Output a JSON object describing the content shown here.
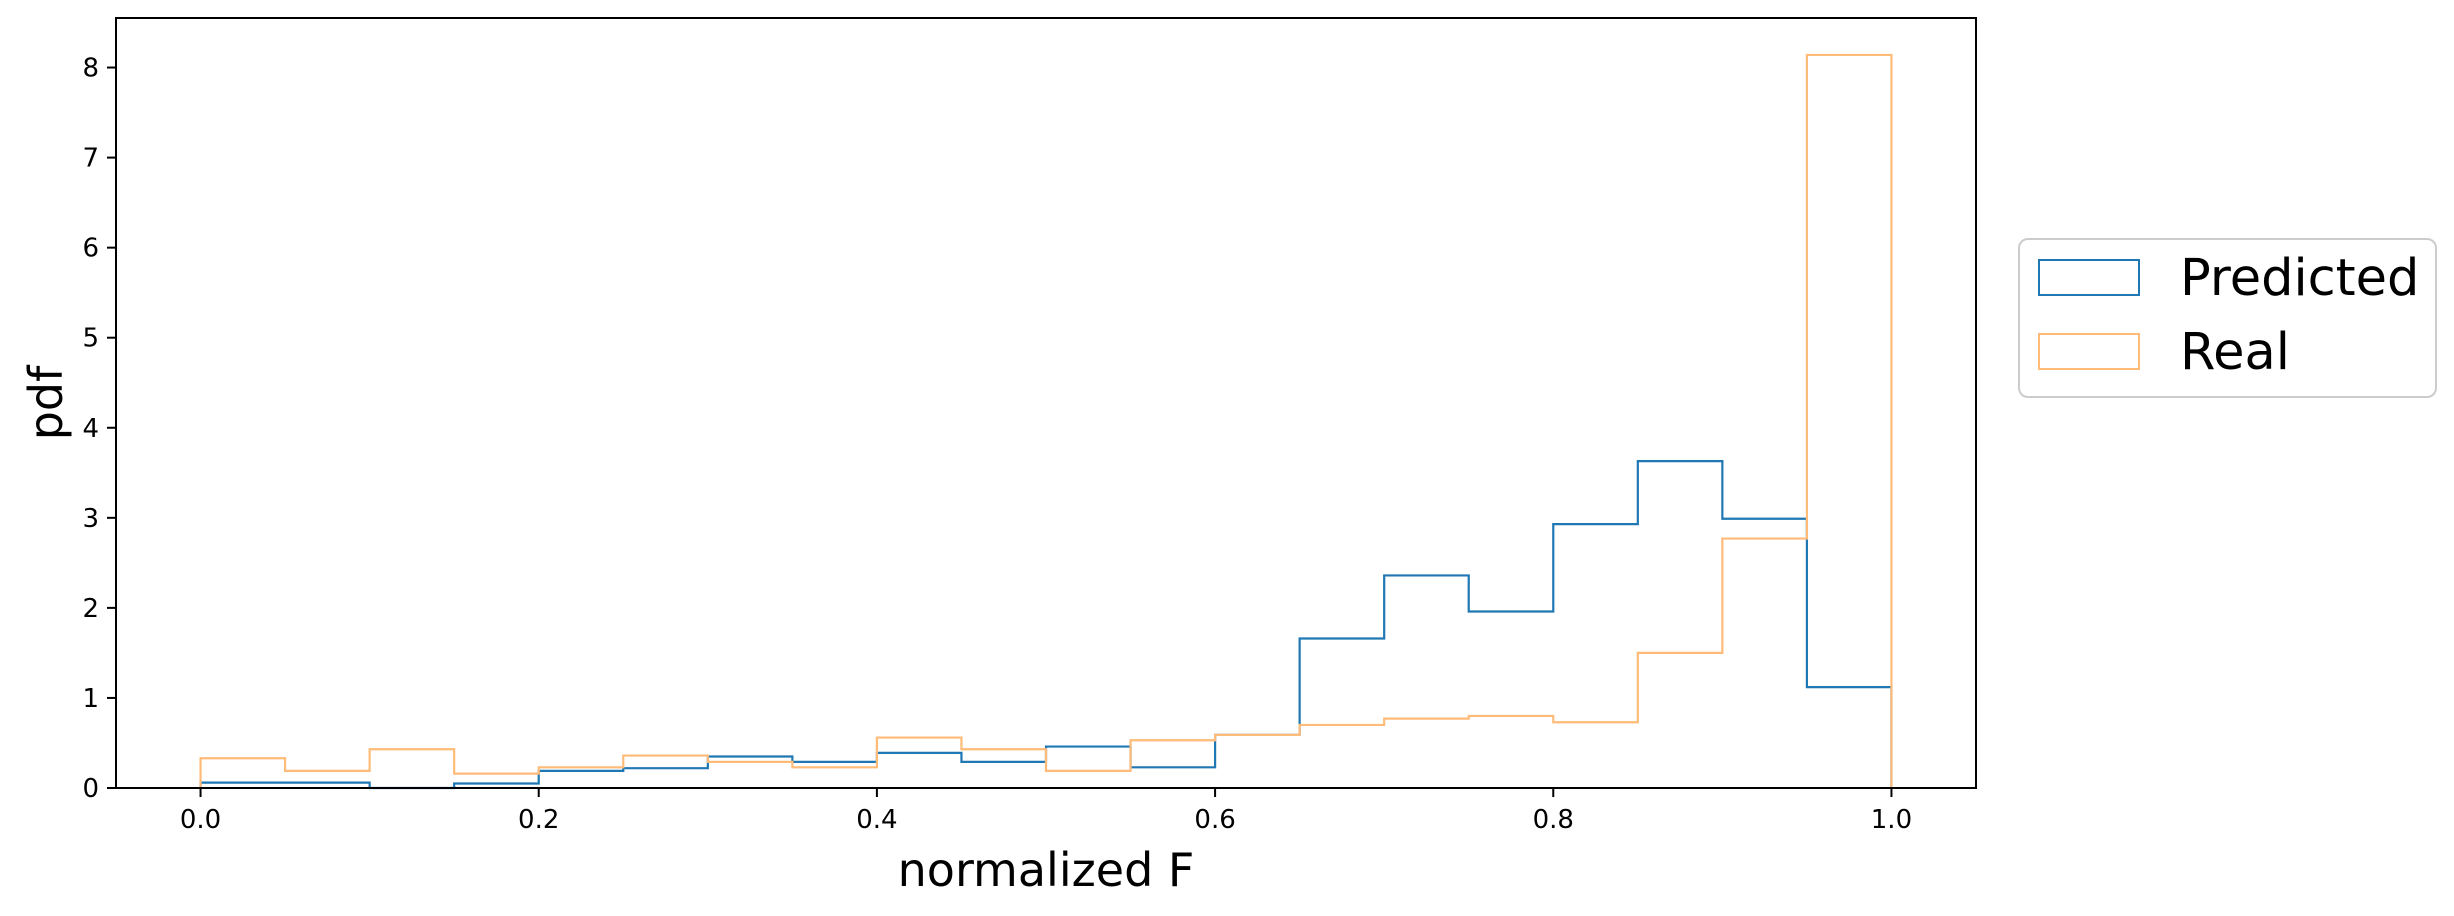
{
  "chart_data": {
    "type": "histogram",
    "bin_edges": [
      0.0,
      0.05,
      0.1,
      0.15,
      0.2,
      0.25,
      0.3,
      0.35,
      0.4,
      0.45,
      0.5,
      0.55,
      0.6,
      0.65,
      0.7,
      0.75,
      0.8,
      0.85,
      0.9,
      0.95,
      1.0
    ],
    "series": [
      {
        "name": "Predicted",
        "color": "#1f77b4",
        "values": [
          0.06,
          0.06,
          0.0,
          0.05,
          0.19,
          0.22,
          0.35,
          0.29,
          0.39,
          0.29,
          0.46,
          0.23,
          0.59,
          1.66,
          2.36,
          1.96,
          2.93,
          3.63,
          2.99,
          1.12
        ]
      },
      {
        "name": "Real",
        "color": "#ffbb78",
        "values": [
          0.33,
          0.19,
          0.43,
          0.16,
          0.23,
          0.36,
          0.29,
          0.23,
          0.56,
          0.43,
          0.19,
          0.53,
          0.59,
          0.7,
          0.77,
          0.8,
          0.73,
          1.5,
          2.77,
          8.14
        ]
      }
    ],
    "xlabel": "normalized F",
    "ylabel": "pdf",
    "xlim": [
      -0.05,
      1.05
    ],
    "ylim": [
      0,
      8.55
    ],
    "xticks": [
      "0.0",
      "0.2",
      "0.4",
      "0.6",
      "0.8",
      "1.0"
    ],
    "yticks": [
      "0",
      "1",
      "2",
      "3",
      "4",
      "5",
      "6",
      "7",
      "8"
    ],
    "grid": false,
    "legend_position": "right, outside the plot area"
  }
}
